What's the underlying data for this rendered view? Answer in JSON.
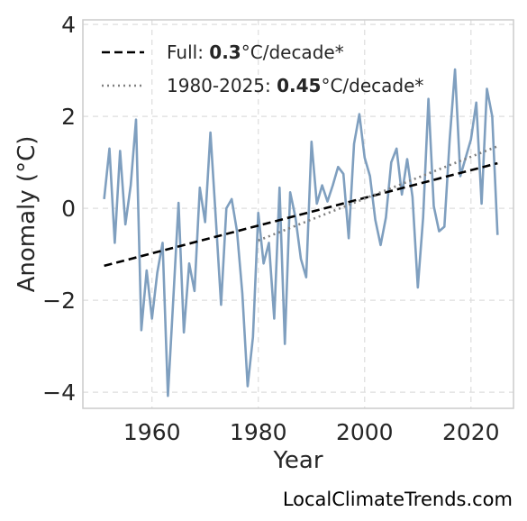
{
  "chart_data": {
    "type": "line",
    "xlabel": "Year",
    "ylabel": "Anomaly (°C)",
    "xlim": [
      1947,
      2028
    ],
    "ylim": [
      -4.35,
      4.1
    ],
    "x_ticks": [
      1960,
      1980,
      2000,
      2020
    ],
    "y_ticks": [
      -4,
      -2,
      0,
      2,
      4
    ],
    "y_tick_labels": [
      "−4",
      "−2",
      "0",
      "2",
      "4"
    ],
    "grid": true,
    "legend_position": "top-left",
    "series": [
      {
        "kind": "data",
        "color": "#7f9fbf",
        "x": [
          1951,
          1952,
          1953,
          1954,
          1955,
          1956,
          1957,
          1958,
          1959,
          1960,
          1961,
          1962,
          1963,
          1964,
          1965,
          1966,
          1967,
          1968,
          1969,
          1970,
          1971,
          1972,
          1973,
          1974,
          1975,
          1976,
          1977,
          1978,
          1979,
          1980,
          1981,
          1982,
          1983,
          1984,
          1985,
          1986,
          1987,
          1988,
          1989,
          1990,
          1991,
          1992,
          1993,
          1994,
          1995,
          1996,
          1997,
          1998,
          1999,
          2000,
          2001,
          2002,
          2003,
          2004,
          2005,
          2006,
          2007,
          2008,
          2009,
          2010,
          2011,
          2012,
          2013,
          2014,
          2015,
          2016,
          2017,
          2018,
          2019,
          2020,
          2021,
          2022,
          2023,
          2024,
          2025
        ],
        "y": [
          0.2,
          1.3,
          -0.75,
          1.25,
          -0.35,
          0.5,
          1.93,
          -2.65,
          -1.35,
          -2.4,
          -1.4,
          -0.75,
          -4.08,
          -2.0,
          0.12,
          -2.7,
          -1.2,
          -1.8,
          0.45,
          -0.3,
          1.65,
          -0.2,
          -2.1,
          0.0,
          0.2,
          -0.5,
          -1.85,
          -3.87,
          -2.8,
          -0.1,
          -1.2,
          -0.75,
          -2.4,
          0.45,
          -2.95,
          0.35,
          -0.2,
          -1.1,
          -1.5,
          1.45,
          0.1,
          0.5,
          0.15,
          0.5,
          0.9,
          0.75,
          -0.65,
          1.4,
          2.05,
          1.1,
          0.7,
          -0.25,
          -0.8,
          -0.2,
          1.0,
          1.3,
          0.3,
          1.07,
          0.25,
          -1.72,
          -0.2,
          2.38,
          0.05,
          -0.5,
          -0.4,
          1.5,
          3.02,
          0.7,
          1.1,
          1.5,
          2.3,
          0.1,
          2.6,
          2.0,
          -0.58
        ]
      },
      {
        "kind": "trend",
        "label_prefix": "Full: ",
        "label_value": "0.3",
        "label_suffix": "°C/decade*",
        "style": "dashed",
        "color": "#000000",
        "x": [
          1951,
          2025
        ],
        "y": [
          -1.25,
          0.98
        ]
      },
      {
        "kind": "trend",
        "label_prefix": "1980-2025: ",
        "label_value": "0.45",
        "label_suffix": "°C/decade*",
        "style": "dotted",
        "color": "#808080",
        "x": [
          1980,
          2025
        ],
        "y": [
          -0.7,
          1.35
        ]
      }
    ]
  },
  "source_text": "LocalClimateTrends.com"
}
